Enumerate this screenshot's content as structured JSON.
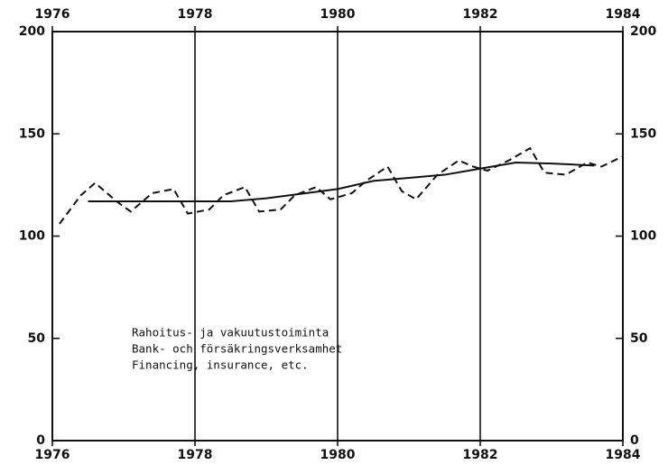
{
  "chart_data": {
    "type": "line",
    "annotation": [
      "Rahoitus- ja vakuutustoiminta",
      "Bank- och försäkringsverksamhet",
      "Financing, insurance, etc."
    ],
    "xlim": [
      1976,
      1984
    ],
    "xticks": [
      1976,
      1978,
      1980,
      1982,
      1984
    ],
    "ylim": [
      0,
      200
    ],
    "yticks": [
      0,
      50,
      100,
      150,
      200
    ],
    "grid": true,
    "series": [
      {
        "color": "#111111",
        "style": "dashed",
        "x": [
          1976.1,
          1976.4,
          1976.6,
          1976.9,
          1977.1,
          1977.4,
          1977.7,
          1977.9,
          1978.2,
          1978.4,
          1978.7,
          1978.9,
          1979.2,
          1979.4,
          1979.7,
          1979.9,
          1980.2,
          1980.4,
          1980.7,
          1980.9,
          1981.1,
          1981.4,
          1981.7,
          1981.9,
          1982.1,
          1982.4,
          1982.7,
          1982.9,
          1983.2,
          1983.5,
          1983.7,
          1984.0
        ],
        "values": [
          106,
          120,
          126,
          117,
          112,
          121,
          123,
          111,
          113,
          120,
          124,
          112,
          113,
          120,
          124,
          118,
          121,
          127,
          134,
          122,
          118,
          130,
          137,
          134,
          132,
          137,
          143,
          131,
          130,
          136,
          134,
          139
        ]
      },
      {
        "color": "#111111",
        "style": "solid",
        "x": [
          1976.5,
          1977,
          1978,
          1978.5,
          1979,
          1980,
          1980.5,
          1981,
          1981.5,
          1982,
          1982.5,
          1983,
          1983.6
        ],
        "values": [
          117,
          117,
          117,
          117,
          118.5,
          123,
          127,
          128.5,
          130,
          133,
          136,
          135.5,
          134.5
        ]
      }
    ]
  }
}
